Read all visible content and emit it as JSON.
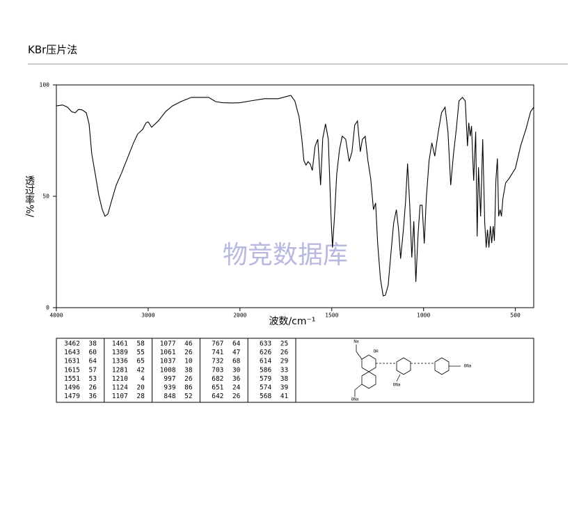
{
  "header": {
    "title": "KBr压片法"
  },
  "chart_data": {
    "type": "line",
    "x_label": "波数/cm⁻¹",
    "y_label": "透过率%/",
    "watermark": "物竞数据库",
    "color": "#000000",
    "xlim": [
      4000,
      400
    ],
    "xticks": [
      4000,
      3000,
      2000,
      1500,
      1000,
      500
    ],
    "ylim": [
      0,
      100
    ],
    "yticks": [
      0,
      50,
      100
    ],
    "x": [
      4000,
      3932,
      3879,
      3833,
      3795,
      3758,
      3720,
      3674,
      3644,
      3614,
      3576,
      3538,
      3500,
      3470,
      3439,
      3402,
      3348,
      3288,
      3227,
      3159,
      3114,
      3061,
      3023,
      3000,
      2962,
      2886,
      2811,
      2735,
      2644,
      2530,
      2341,
      2265,
      2189,
      2076,
      2000,
      1943,
      1867,
      1792,
      1723,
      1701,
      1678,
      1663,
      1652,
      1640,
      1629,
      1617,
      1606,
      1591,
      1576,
      1561,
      1549,
      1534,
      1519,
      1504,
      1496,
      1485,
      1473,
      1458,
      1443,
      1424,
      1405,
      1390,
      1375,
      1360,
      1345,
      1333,
      1318,
      1303,
      1288,
      1273,
      1261,
      1250,
      1235,
      1220,
      1208,
      1193,
      1178,
      1163,
      1148,
      1136,
      1125,
      1110,
      1098,
      1087,
      1076,
      1064,
      1053,
      1042,
      1030,
      1019,
      1008,
      996,
      985,
      970,
      955,
      939,
      920,
      902,
      883,
      867,
      852,
      837,
      822,
      807,
      788,
      773,
      761,
      754,
      746,
      739,
      727,
      716,
      708,
      701,
      689,
      678,
      667,
      659,
      652,
      644,
      636,
      629,
      621,
      614,
      606,
      598,
      591,
      583,
      576,
      568,
      553,
      534,
      500,
      470,
      443,
      417,
      400
    ],
    "y": [
      90.6,
      91,
      90,
      88,
      87.5,
      89,
      88.8,
      87.5,
      82.5,
      69,
      60,
      50.6,
      44,
      41,
      42,
      47.5,
      55,
      60.6,
      67,
      74,
      78,
      80,
      83,
      83.4,
      81,
      84,
      88,
      90.6,
      92.5,
      94.4,
      94.4,
      92.5,
      92,
      91.9,
      92,
      92.8,
      93.8,
      93.8,
      95.3,
      92.8,
      85.6,
      75.6,
      66,
      64,
      65.6,
      64.4,
      61.6,
      72.5,
      75.6,
      55,
      76,
      82.5,
      75.6,
      41,
      27,
      41,
      60,
      71,
      77,
      75.6,
      65.6,
      70,
      82,
      83.8,
      70,
      75.6,
      76.9,
      66,
      58,
      44,
      47,
      29,
      13,
      5.3,
      5.6,
      10,
      24,
      38,
      44,
      35,
      22,
      35,
      47.5,
      64.7,
      47.5,
      22.5,
      38.8,
      11.6,
      33,
      46,
      46,
      28.8,
      49,
      66,
      74,
      68,
      78.8,
      87.5,
      90,
      78.8,
      55,
      69,
      80,
      92.8,
      94.4,
      92.8,
      72.5,
      83,
      77,
      81.6,
      57,
      79,
      32,
      63,
      41,
      75.6,
      38,
      27,
      35,
      27,
      36.6,
      29,
      36.6,
      30,
      57,
      67,
      41,
      44,
      41,
      49,
      56,
      58,
      62.5,
      73,
      80,
      88,
      90
    ]
  },
  "peak_table": [
    [
      [
        3462,
        38
      ],
      [
        1643,
        60
      ],
      [
        1631,
        64
      ],
      [
        1615,
        57
      ],
      [
        1551,
        53
      ],
      [
        1496,
        26
      ],
      [
        1479,
        36
      ]
    ],
    [
      [
        1461,
        58
      ],
      [
        1389,
        55
      ],
      [
        1336,
        65
      ],
      [
        1281,
        42
      ],
      [
        1210,
        4
      ],
      [
        1124,
        20
      ],
      [
        1107,
        28
      ]
    ],
    [
      [
        1077,
        46
      ],
      [
        1061,
        26
      ],
      [
        1037,
        10
      ],
      [
        1008,
        38
      ],
      [
        997,
        26
      ],
      [
        939,
        86
      ],
      [
        848,
        52
      ]
    ],
    [
      [
        767,
        64
      ],
      [
        741,
        47
      ],
      [
        732,
        68
      ],
      [
        703,
        30
      ],
      [
        682,
        36
      ],
      [
        651,
        24
      ],
      [
        642,
        26
      ]
    ],
    [
      [
        633,
        25
      ],
      [
        626,
        26
      ],
      [
        614,
        29
      ],
      [
        586,
        33
      ],
      [
        579,
        38
      ],
      [
        574,
        39
      ],
      [
        568,
        41
      ]
    ]
  ],
  "structure": {
    "labels": [
      "Na",
      "OH",
      "ONa",
      "ONa",
      "ONa"
    ]
  }
}
